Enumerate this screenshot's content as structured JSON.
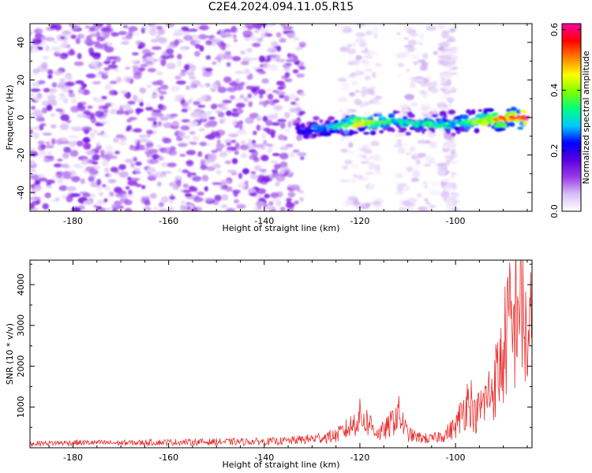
{
  "title": "C2E4.2024.094.11.05.R15",
  "chart_data": [
    {
      "type": "heatmap",
      "xlabel": "Height of straight line (km)",
      "ylabel": "Frequency (Hz)",
      "xlim": [
        -189,
        -84
      ],
      "ylim": [
        -50,
        50
      ],
      "xticks": [
        -180,
        -160,
        -140,
        -120,
        -100
      ],
      "yticks": [
        -40,
        -20,
        0,
        20,
        40
      ],
      "colorbar": {
        "label": "Normalized spectral amplitude",
        "range": [
          0.0,
          0.62
        ],
        "ticks": [
          0.0,
          0.2,
          0.4,
          0.6
        ],
        "tick_labels": [
          "0.0",
          "0.2",
          "0.4",
          "0.6"
        ],
        "colormap": [
          "#ffffff",
          "#d9bff5",
          "#9a3bea",
          "#5a00e0",
          "#0000ff",
          "#00c8ff",
          "#00ff7f",
          "#7dff00",
          "#ffff00",
          "#ff8000",
          "#ff0000",
          "#ff00aa"
        ]
      },
      "features": {
        "noise_region_x": [
          -189,
          -132
        ],
        "noise_amplitude_range": [
          0.02,
          0.15
        ],
        "signal_track": {
          "x": [
            -133,
            -125,
            -120,
            -115,
            -110,
            -105,
            -100,
            -95,
            -90,
            -85
          ],
          "frequency": [
            -7,
            -5,
            -3,
            -2,
            -3,
            -4,
            -3,
            -2,
            -1,
            0
          ],
          "amplitude": [
            0.2,
            0.3,
            0.45,
            0.35,
            0.3,
            0.35,
            0.3,
            0.4,
            0.5,
            0.62
          ]
        }
      }
    },
    {
      "type": "line",
      "xlabel": "Height of straight line (km)",
      "ylabel": "SNR (10 * v/v)",
      "xlim": [
        -189,
        -84
      ],
      "ylim": [
        0,
        4600
      ],
      "xticks": [
        -180,
        -160,
        -140,
        -120,
        -100
      ],
      "yticks": [
        1000,
        2000,
        3000,
        4000
      ],
      "line_color": "#e83030",
      "series": [
        {
          "x": [
            -189,
            -180,
            -170,
            -160,
            -150,
            -140,
            -135,
            -130,
            -125,
            -122,
            -120,
            -118,
            -116,
            -114,
            -112,
            -111,
            -110,
            -108,
            -105,
            -102,
            -100,
            -98,
            -97,
            -96,
            -94,
            -92,
            -90,
            -89,
            -88,
            -87,
            -86,
            -85,
            -84
          ],
          "values": [
            120,
            150,
            140,
            160,
            170,
            180,
            200,
            260,
            350,
            600,
            900,
            700,
            400,
            600,
            1000,
            700,
            400,
            300,
            250,
            400,
            600,
            1200,
            1500,
            900,
            1300,
            1800,
            2600,
            3700,
            3000,
            4600,
            3900,
            2900,
            3500
          ]
        }
      ]
    }
  ]
}
